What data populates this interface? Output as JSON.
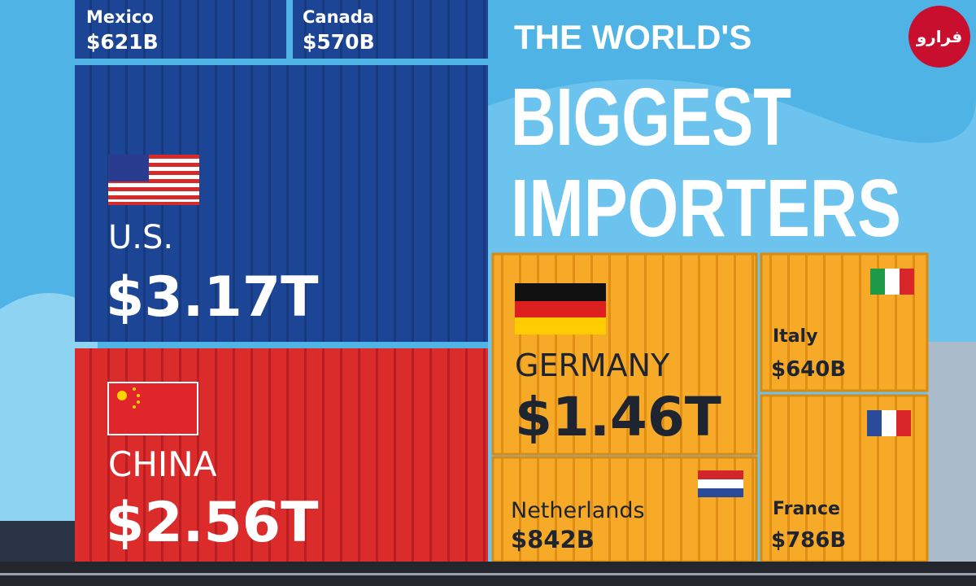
{
  "header": {
    "line1": "THE WORLD'S",
    "line2": "BIGGEST",
    "line3": "IMPORTERS"
  },
  "watermark": "فرارو",
  "containers": [
    {
      "country": "Mexico",
      "value": "$621B"
    },
    {
      "country": "Canada",
      "value": "$570B"
    },
    {
      "country": "U.S.",
      "value": "$3.17T"
    },
    {
      "country": "CHINA",
      "value": "$2.56T"
    },
    {
      "country": "GERMANY",
      "value": "$1.46T"
    },
    {
      "country": "Netherlands",
      "value": "$842B"
    },
    {
      "country": "Italy",
      "value": "$640B"
    },
    {
      "country": "France",
      "value": "$786B"
    }
  ]
}
